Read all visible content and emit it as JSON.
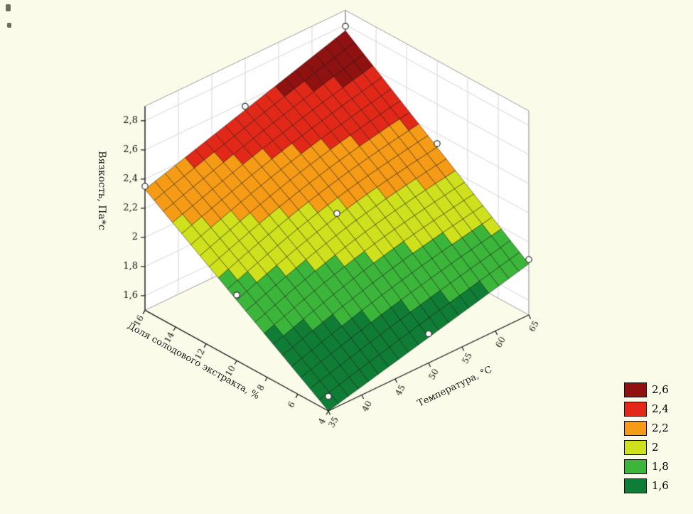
{
  "chart_data": {
    "type": "surface",
    "title": "",
    "xlabel": "Температура, °С",
    "ylabel": "Доля солодового экстракта, %",
    "zlabel": "Вязкость, Па*с",
    "x": {
      "min": 35,
      "max": 65,
      "ticks": [
        35,
        40,
        45,
        50,
        55,
        60,
        65
      ],
      "tick_labels": [
        "35",
        "40",
        "45",
        "50",
        "55",
        "60",
        "65"
      ]
    },
    "y": {
      "min": 4,
      "max": 16,
      "ticks": [
        4,
        6,
        8,
        10,
        12,
        14,
        16
      ],
      "tick_labels": [
        "4",
        "6",
        "8",
        "10",
        "12",
        "14",
        "16"
      ]
    },
    "z": {
      "range": [
        1.5,
        2.9
      ],
      "ticks": [
        1.6,
        1.8,
        2.0,
        2.2,
        2.4,
        2.6,
        2.8
      ],
      "tick_labels": [
        "1,6",
        "1,8",
        "2",
        "2,2",
        "2,4",
        "2,6",
        "2,8"
      ]
    },
    "surface": {
      "grid_divisions": 20,
      "dome": 0.05,
      "corner_values": {
        "z_t35_e4": 1.5,
        "z_t65_e4": 1.85,
        "z_t35_e16": 2.33,
        "z_t65_e16": 2.76
      }
    },
    "bands": [
      {
        "label": "2,6",
        "from": 2.6,
        "color": "#8f1110"
      },
      {
        "label": "2,4",
        "from": 2.4,
        "color": "#e22818"
      },
      {
        "label": "2,2",
        "from": 2.2,
        "color": "#f59b16"
      },
      {
        "label": "2",
        "from": 2.0,
        "color": "#cfe11c"
      },
      {
        "label": "1,8",
        "from": 1.8,
        "color": "#3bb53a"
      },
      {
        "label": "1,6",
        "from": 0.0,
        "color": "#0f7d35"
      }
    ],
    "legend_position": "right-bottom",
    "points": [
      {
        "t": 35,
        "e": 16,
        "z": 2.35
      },
      {
        "t": 50,
        "e": 16,
        "z": 2.57
      },
      {
        "t": 65,
        "e": 16,
        "z": 2.79
      },
      {
        "t": 35,
        "e": 10,
        "z": 1.95
      },
      {
        "t": 50,
        "e": 10,
        "z": 2.18
      },
      {
        "t": 65,
        "e": 10,
        "z": 2.33
      },
      {
        "t": 35,
        "e": 4,
        "z": 1.6
      },
      {
        "t": 50,
        "e": 4,
        "z": 1.7
      },
      {
        "t": 65,
        "e": 4,
        "z": 1.88
      }
    ]
  }
}
